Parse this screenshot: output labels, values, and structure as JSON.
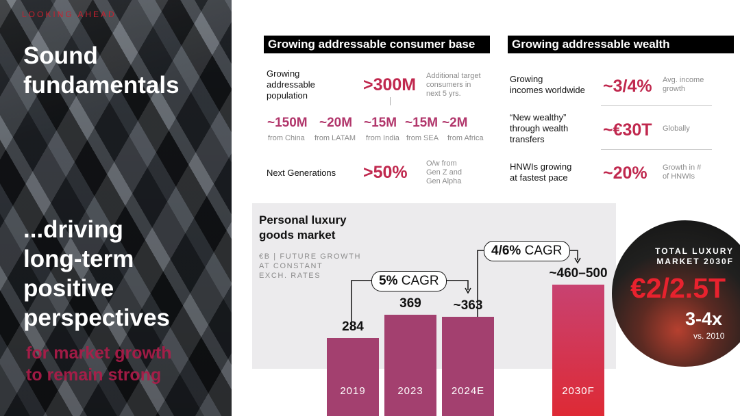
{
  "left": {
    "eyebrow": "LOOKING AHEAD",
    "title_line1": "Sound",
    "title_line2": "fundamentals",
    "driving_line1": "...driving",
    "driving_line2": "long-term",
    "driving_line3": "positive",
    "driving_line4": "perspectives",
    "sub_line1": "for market growth",
    "sub_line2": "to remain strong"
  },
  "consumer": {
    "header": "Growing addressable consumer base",
    "pop_label": [
      "Growing",
      "addressable",
      "population"
    ],
    "pop_value": ">300M",
    "pop_note": [
      "Additional target",
      "consumers in",
      "next 5 yrs."
    ],
    "regions": [
      {
        "value": "~150M",
        "label": "from China"
      },
      {
        "value": "~20M",
        "label": "from LATAM"
      },
      {
        "value": "~15M",
        "label": "from India"
      },
      {
        "value": "~15M",
        "label": "from SEA"
      },
      {
        "value": "~2M",
        "label": "from Africa"
      }
    ],
    "gen_label": "Next Generations",
    "gen_value": ">50%",
    "gen_note": [
      "O/w from",
      "Gen Z and",
      "Gen Alpha"
    ]
  },
  "wealth": {
    "header": "Growing addressable wealth",
    "rows": [
      {
        "label": [
          "Growing",
          "incomes worldwide"
        ],
        "value": "~3/4%",
        "note": [
          "Avg. income",
          "growth"
        ]
      },
      {
        "label": [
          "“New wealthy”",
          "through wealth",
          "transfers"
        ],
        "value": "~€30T",
        "note": [
          "Globally"
        ]
      },
      {
        "label": [
          "HNWIs growing",
          "at fastest pace"
        ],
        "value": "~20%",
        "note": [
          "Growth in #",
          "of HNWIs"
        ]
      }
    ]
  },
  "market": {
    "title_line1": "Personal luxury",
    "title_line2": "goods market",
    "subtitle_line1": "€B | FUTURE GROWTH",
    "subtitle_line2": "AT CONSTANT",
    "subtitle_line3": "EXCH. RATES",
    "cagr1_pct": "5%",
    "cagr1_word": "CAGR",
    "cagr2_pct": "4/6%",
    "cagr2_word": "CAGR"
  },
  "chart_data": {
    "type": "bar",
    "title": "Personal luxury goods market",
    "ylabel": "€B | FUTURE GROWTH AT CONSTANT EXCH. RATES",
    "categories": [
      "2019",
      "2023",
      "2024E",
      "2030F"
    ],
    "values": [
      284,
      369,
      363,
      480
    ],
    "value_labels": [
      "284",
      "369",
      "~363",
      "~460–500"
    ],
    "ylim": [
      0,
      500
    ],
    "annotations": [
      "5% CAGR (2019–2024E)",
      "4/6% CAGR (2024E–2030F)"
    ]
  },
  "total": {
    "label_line1": "TOTAL LUXURY",
    "label_line2": "MARKET 2030F",
    "value": "€2/2.5T",
    "multiple": "3-4x",
    "vs": "vs. 2010"
  },
  "colors": {
    "accent": "#c0284e",
    "bar": "#a3406f",
    "forecast": "#de2a35"
  }
}
